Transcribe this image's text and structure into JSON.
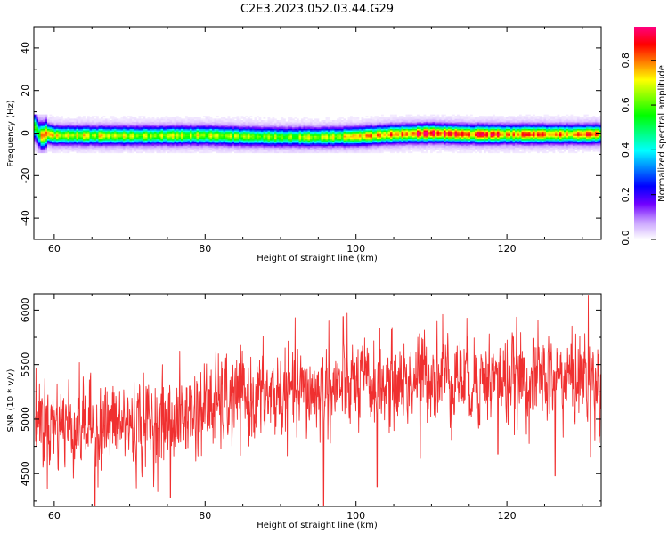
{
  "figure_title": "C2E3.2023.052.03.44.G29",
  "chart_data": [
    {
      "type": "heatmap",
      "xlabel": "Height of straight line (km)",
      "ylabel": "Frequency (Hz)",
      "xlim": [
        57.3,
        132.5
      ],
      "ylim": [
        -50,
        50
      ],
      "xticks": [
        60,
        80,
        100,
        120
      ],
      "yticks": [
        40,
        20,
        0,
        -20,
        -40
      ],
      "grid": false,
      "band_profile": {
        "x": [
          57.5,
          58.0,
          58.5,
          59.0,
          60,
          70,
          80,
          85,
          90,
          95,
          100,
          105,
          110,
          115,
          120,
          125,
          130,
          132.5
        ],
        "center_hz": [
          3.0,
          -0.5,
          -1.5,
          0.0,
          -1.0,
          -1.2,
          -1.0,
          -1.5,
          -1.8,
          -1.8,
          -1.5,
          -0.5,
          0.0,
          -0.5,
          -0.5,
          -0.5,
          -0.5,
          -0.3
        ],
        "peak_amplitude": [
          0.5,
          0.5,
          0.75,
          0.8,
          0.65,
          0.6,
          0.6,
          0.55,
          0.55,
          0.6,
          0.65,
          0.75,
          0.85,
          0.8,
          0.75,
          0.75,
          0.75,
          0.7
        ]
      },
      "colorbar": {
        "label": "Normalized spectral amplitude",
        "range": [
          0,
          0.95
        ],
        "ticks": [
          "0.0",
          "0.2",
          "0.4",
          "0.6",
          "0.8"
        ],
        "colors": [
          "#ffffff",
          "#c8a0ff",
          "#7000ff",
          "#0000ff",
          "#0080ff",
          "#00ffff",
          "#00ff80",
          "#00ff00",
          "#80ff00",
          "#ffff00",
          "#ff8000",
          "#ff0000",
          "#ff0080"
        ]
      }
    },
    {
      "type": "line",
      "xlabel": "Height of straight line (km)",
      "ylabel": "SNR (10 * v/v)",
      "xlim": [
        57.3,
        132.5
      ],
      "ylim": [
        4200,
        6150
      ],
      "xticks": [
        60,
        80,
        100,
        120
      ],
      "yticks": [
        4500,
        5000,
        5500,
        6000
      ],
      "grid": false,
      "series": [
        {
          "color": "#f03030",
          "trend_x": [
            57.5,
            60,
            65,
            70,
            75,
            80,
            85,
            90,
            95,
            100,
            105,
            110,
            115,
            120,
            125,
            130,
            132.5
          ],
          "trend_y": [
            5000,
            4980,
            4930,
            4950,
            4980,
            5100,
            5180,
            5220,
            5250,
            5300,
            5320,
            5420,
            5380,
            5360,
            5380,
            5380,
            5350
          ],
          "noise_std": 190,
          "min_spikes": [
            [
              58.5,
              4560
            ],
            [
              65.4,
              4160
            ],
            [
              75.4,
              4280
            ],
            [
              95.7,
              4160
            ],
            [
              102.8,
              4380
            ],
            [
              108.5,
              4640
            ],
            [
              118.8,
              4680
            ],
            [
              126.4,
              4480
            ],
            [
              131.1,
              4650
            ]
          ],
          "max_spikes": [
            [
              80.8,
              5450
            ],
            [
              96.4,
              5900
            ],
            [
              98.3,
              5940
            ],
            [
              111.5,
              5960
            ],
            [
              130.8,
              6130
            ]
          ]
        }
      ]
    }
  ]
}
